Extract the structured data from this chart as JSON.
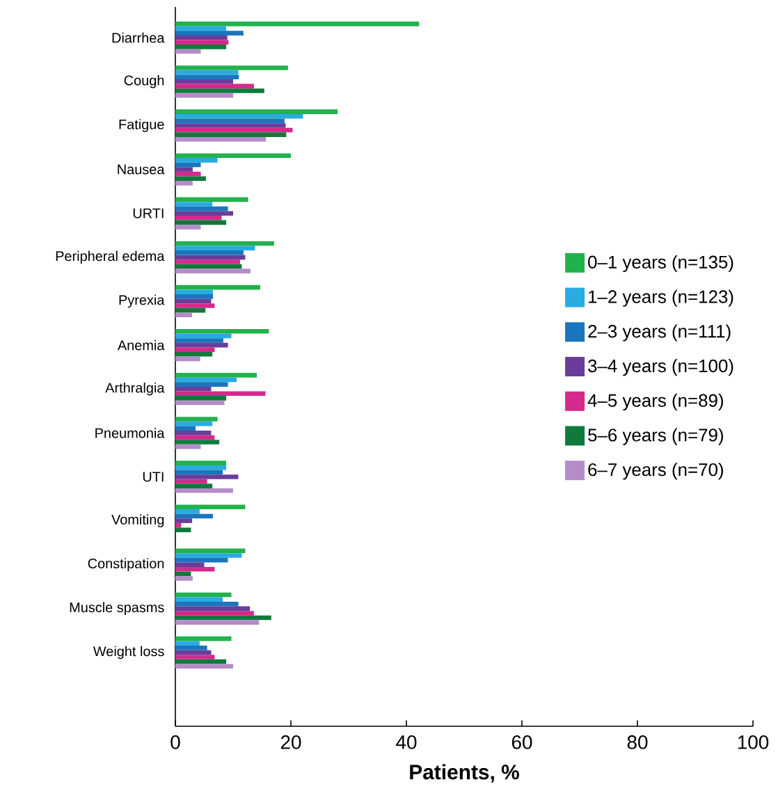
{
  "chart_data": {
    "type": "bar",
    "orientation": "horizontal",
    "xlabel": "**Patients, %**",
    "categories": [
      "Diarrhea",
      "Cough",
      "Fatigue",
      "Nausea",
      "URTI",
      "Peripheral edema",
      "Pyrexia",
      "Anemia",
      "Arthralgia",
      "Pneumonia",
      "UTI",
      "Vomiting",
      "Constipation",
      "Muscle spasms",
      "Weight loss"
    ],
    "series": [
      {
        "name": "0–1 years (n=135)",
        "color": "#22b24c",
        "values": [
          42.2,
          19.5,
          28.1,
          20.0,
          12.6,
          17.1,
          14.7,
          16.2,
          14.1,
          7.3,
          8.8,
          12.1,
          12.1,
          9.7,
          9.7
        ]
      },
      {
        "name": "1–2 years (n=123)",
        "color": "#29abe2",
        "values": [
          8.8,
          10.9,
          22.1,
          7.3,
          6.4,
          13.8,
          6.5,
          9.7,
          10.6,
          6.4,
          8.8,
          4.2,
          11.5,
          8.2,
          4.2
        ]
      },
      {
        "name": "2–3 years (n=111)",
        "color": "#1b75bc",
        "values": [
          11.8,
          11.0,
          18.9,
          4.4,
          9.1,
          11.8,
          6.5,
          8.3,
          9.1,
          3.5,
          8.2,
          6.5,
          9.1,
          10.9,
          5.5
        ]
      },
      {
        "name": "3–4 years (n=100)",
        "color": "#6a3d9a",
        "values": [
          9.0,
          10.0,
          19.1,
          3.0,
          10.0,
          12.1,
          6.2,
          9.1,
          6.2,
          6.2,
          10.9,
          2.9,
          5.0,
          12.9,
          6.2
        ]
      },
      {
        "name": "4–5 years (n=89)",
        "color": "#d42a8c",
        "values": [
          9.2,
          13.6,
          20.3,
          4.4,
          8.0,
          11.2,
          6.8,
          6.8,
          15.6,
          6.8,
          5.5,
          1.0,
          6.8,
          13.6,
          6.8
        ]
      },
      {
        "name": "5–6 years (n=79)",
        "color": "#0f7a3c",
        "values": [
          8.8,
          15.4,
          19.2,
          5.3,
          8.8,
          11.5,
          5.2,
          6.4,
          8.8,
          7.6,
          6.4,
          2.7,
          2.7,
          16.6,
          8.8
        ]
      },
      {
        "name": "6–7 years (n=70)",
        "color": "#b48cc8",
        "values": [
          4.4,
          10.0,
          15.7,
          3.0,
          4.4,
          13.0,
          2.9,
          4.3,
          8.5,
          4.4,
          10.0,
          null,
          3.0,
          14.5,
          10.0
        ]
      }
    ],
    "xlim": [
      0,
      100
    ],
    "xticks": [
      0,
      20,
      40,
      60,
      80,
      100
    ],
    "legend": "right",
    "grid": false
  }
}
